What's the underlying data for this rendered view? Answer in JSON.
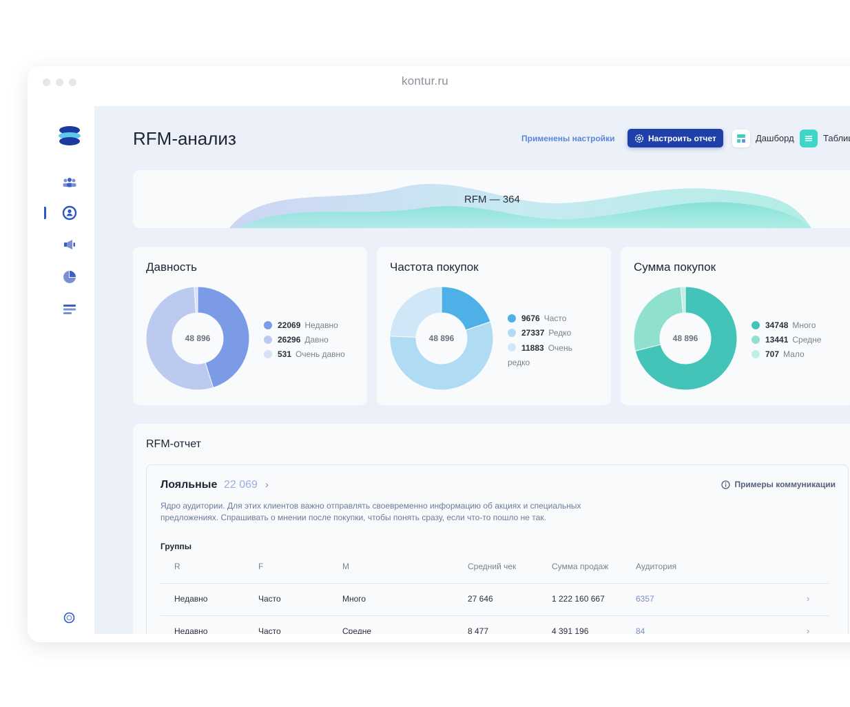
{
  "browser": {
    "url": "kontur.ru"
  },
  "header": {
    "title": "RFM-анализ",
    "settings_applied": "Применены настройки",
    "configure_button": "Настроить отчет",
    "dashboard_label": "Дашборд",
    "table_label": "Таблица"
  },
  "sidebar": {
    "items": [
      {
        "icon": "audience-icon"
      },
      {
        "icon": "rfm-icon",
        "active": true
      },
      {
        "icon": "megaphone-icon"
      },
      {
        "icon": "pie-chart-icon"
      },
      {
        "icon": "list-icon"
      }
    ],
    "bottom_icon": "help-icon"
  },
  "wave": {
    "title": "RFM — 364"
  },
  "colors": {
    "accent": "#1e40a8",
    "recency": [
      "#7b9be6",
      "#bccaf0",
      "#d9e1f7"
    ],
    "frequency": [
      "#4db0e6",
      "#b0dcf3",
      "#cfe7f6"
    ],
    "monetary": [
      "#44c4b8",
      "#8fe0cf",
      "#c2efe4"
    ]
  },
  "donuts": [
    {
      "title": "Давность",
      "total": "48 896",
      "items": [
        {
          "value": 22069,
          "value_text": "22069",
          "label": "Недавно"
        },
        {
          "value": 26296,
          "value_text": "26296",
          "label": "Давно"
        },
        {
          "value": 531,
          "value_text": "531",
          "label": "Очень давно"
        }
      ]
    },
    {
      "title": "Частота покупок",
      "total": "48 896",
      "items": [
        {
          "value": 9676,
          "value_text": "9676",
          "label": "Часто"
        },
        {
          "value": 27337,
          "value_text": "27337",
          "label": "Редко"
        },
        {
          "value": 11883,
          "value_text": "11883",
          "label": "Очень редко"
        }
      ]
    },
    {
      "title": "Сумма покупок",
      "total": "48 896",
      "items": [
        {
          "value": 34748,
          "value_text": "34748",
          "label": "Много"
        },
        {
          "value": 13441,
          "value_text": "13441",
          "label": "Средне"
        },
        {
          "value": 707,
          "value_text": "707",
          "label": "Мало"
        }
      ]
    }
  ],
  "report": {
    "title": "RFM-отчет",
    "segment": {
      "name": "Лояльные",
      "count": "22 069",
      "examples_link": "Примеры коммуникации",
      "description": "Ядро аудитории. Для этих клиентов важно отправлять своевременно информацию об акциях и специальных предложениях. Спрашивать о мнении после покупки, чтобы понять сразу, если что-то пошло не так.",
      "groups_label": "Группы",
      "columns": [
        "R",
        "F",
        "M",
        "Средний чек",
        "Сумма продаж",
        "Аудитория"
      ],
      "rows": [
        [
          "Недавно",
          "Часто",
          "Много",
          "27 646",
          "1 222 160 667",
          "6357"
        ],
        [
          "Недавно",
          "Часто",
          "Средне",
          "8 477",
          "4 391 196",
          "84"
        ]
      ]
    }
  }
}
